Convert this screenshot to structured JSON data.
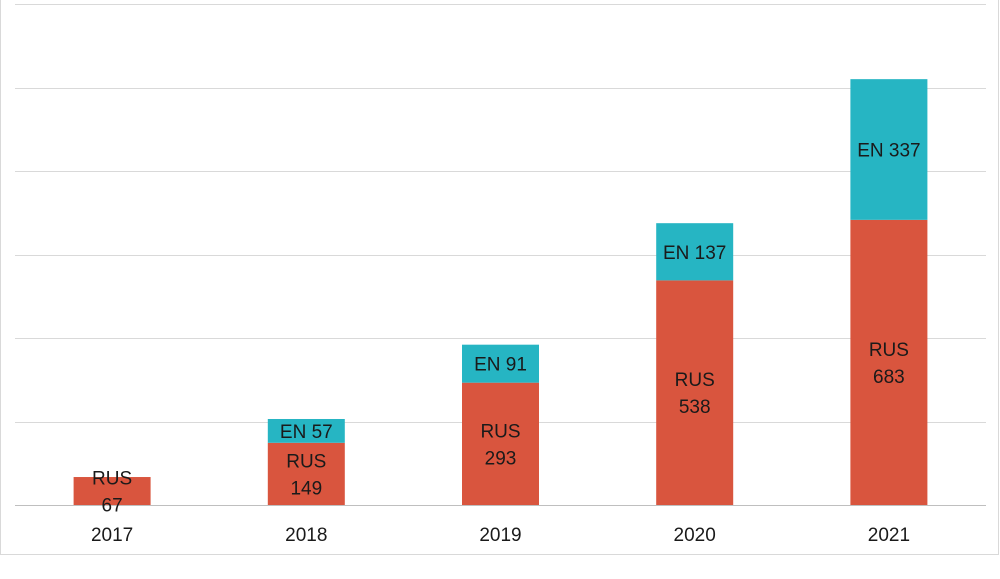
{
  "chart_data": {
    "type": "bar",
    "stacked": true,
    "categories": [
      "2017",
      "2018",
      "2019",
      "2020",
      "2021"
    ],
    "series": [
      {
        "name": "RUS",
        "color": "#d9553e",
        "values": [
          67,
          149,
          293,
          538,
          683
        ]
      },
      {
        "name": "EN",
        "color": "#26b5c3",
        "values": [
          0,
          57,
          91,
          137,
          337
        ]
      }
    ],
    "data_labels": [
      [
        "RUS\n67",
        "RUS\n149",
        "RUS\n293",
        "RUS\n538",
        "RUS\n683"
      ],
      [
        "",
        "EN 57",
        "EN 91",
        "EN 137",
        "EN 337"
      ]
    ],
    "ylim": [
      0,
      1200
    ],
    "grid": true,
    "legend": "none",
    "title": "",
    "xlabel": "",
    "ylabel": ""
  }
}
